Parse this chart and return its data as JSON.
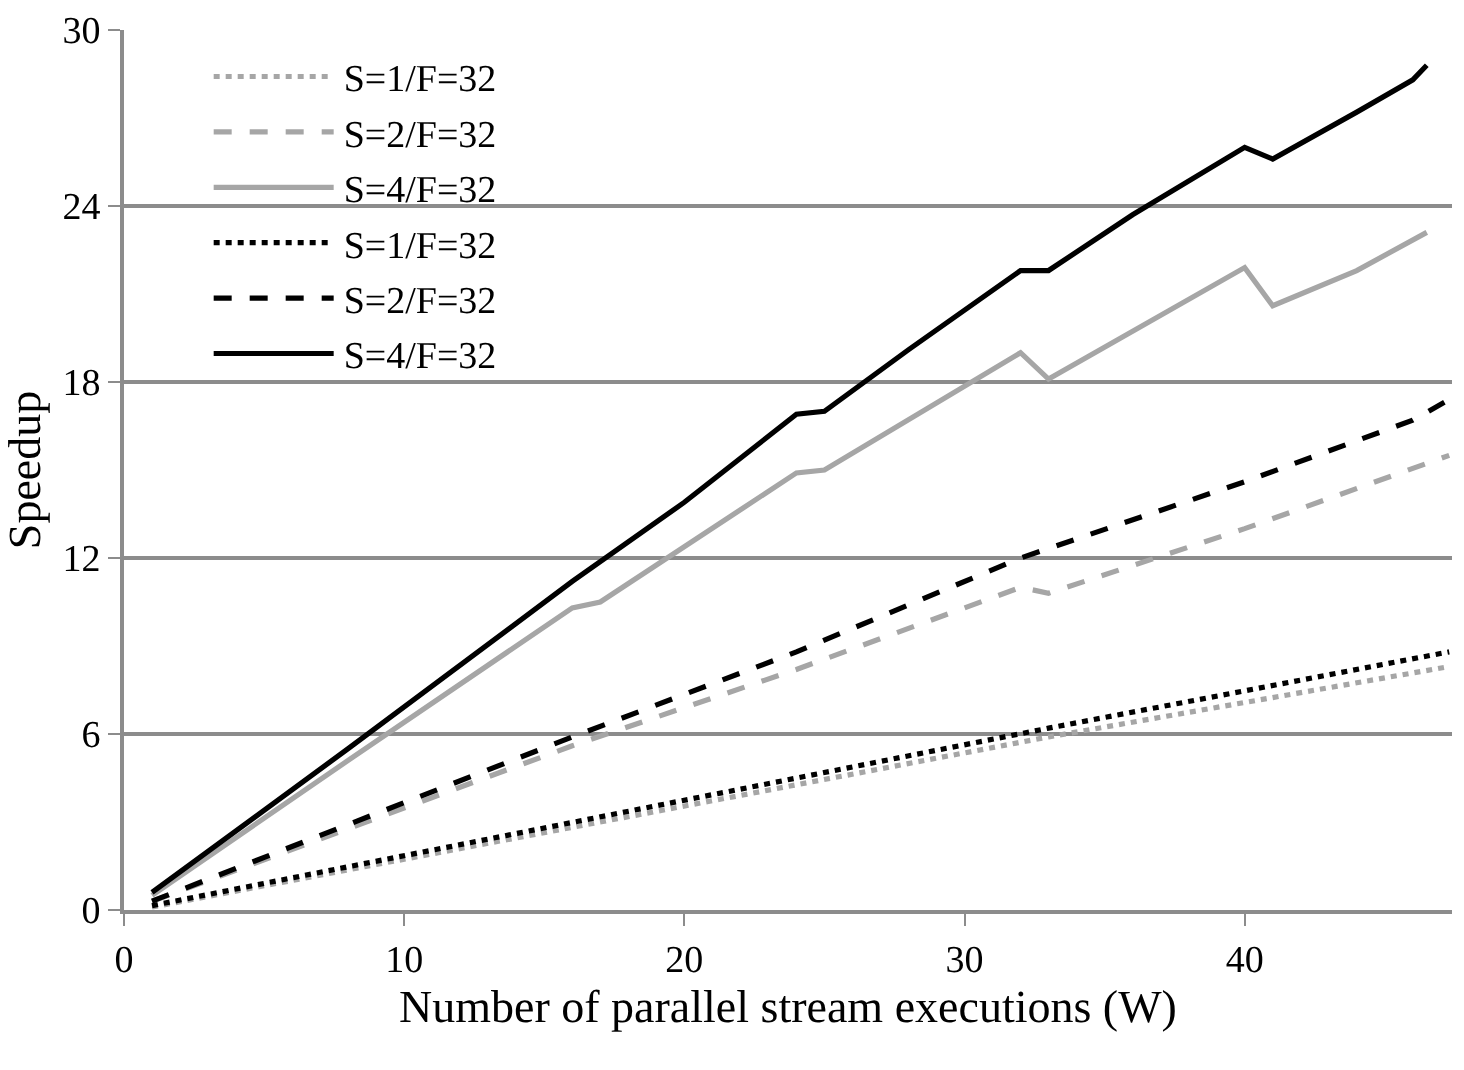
{
  "chart_data": {
    "type": "line",
    "xlabel": "Number of parallel stream executions (W)",
    "ylabel": "Speedup",
    "xlim": [
      0,
      47.4
    ],
    "xticks": [
      0,
      10,
      20,
      30,
      40
    ],
    "ylim": [
      0,
      30
    ],
    "yticks": [
      0,
      6,
      12,
      18,
      24,
      30
    ],
    "grid": "y",
    "legend": "top left",
    "marker": "none",
    "series": [
      {
        "name": "S=1/F=32",
        "color": "#a6a6a6",
        "line_style": "dotted",
        "x": [
          1,
          33,
          47.3
        ],
        "values": [
          0.1,
          5.9,
          8.3
        ]
      },
      {
        "name": "S=2/F=32",
        "color": "#a6a6a6",
        "line_style": "dashed",
        "x": [
          1,
          16,
          24,
          32,
          33,
          40,
          47.3
        ],
        "values": [
          0.3,
          5.6,
          8.2,
          11.0,
          10.8,
          13.0,
          15.5
        ]
      },
      {
        "name": "S=4/F=32",
        "color": "#a6a6a6",
        "line_style": "solid",
        "x": [
          1,
          8,
          16,
          17,
          24,
          25,
          32,
          33,
          40,
          41,
          44,
          46.5
        ],
        "values": [
          0.5,
          5.1,
          10.3,
          10.5,
          14.9,
          15.0,
          19.0,
          18.1,
          21.9,
          20.6,
          21.8,
          23.1
        ]
      },
      {
        "name": "S=1/F=32",
        "color": "#000000",
        "line_style": "dotted",
        "x": [
          1,
          33,
          47.3
        ],
        "values": [
          0.15,
          6.2,
          8.8
        ]
      },
      {
        "name": "S=2/F=32",
        "color": "#000000",
        "line_style": "dashed",
        "x": [
          1,
          16,
          24,
          32,
          40,
          46,
          47.3
        ],
        "values": [
          0.3,
          5.9,
          8.8,
          12.0,
          14.6,
          16.7,
          17.4
        ]
      },
      {
        "name": "S=4/F=32",
        "color": "#000000",
        "line_style": "solid",
        "x": [
          1,
          8,
          16,
          20,
          24,
          25,
          28,
          32,
          33,
          36,
          40,
          41,
          44,
          46,
          46.5
        ],
        "values": [
          0.6,
          5.5,
          11.2,
          13.9,
          16.9,
          17.0,
          19.1,
          21.8,
          21.8,
          23.7,
          26.0,
          25.6,
          27.2,
          28.3,
          28.8
        ]
      }
    ]
  }
}
